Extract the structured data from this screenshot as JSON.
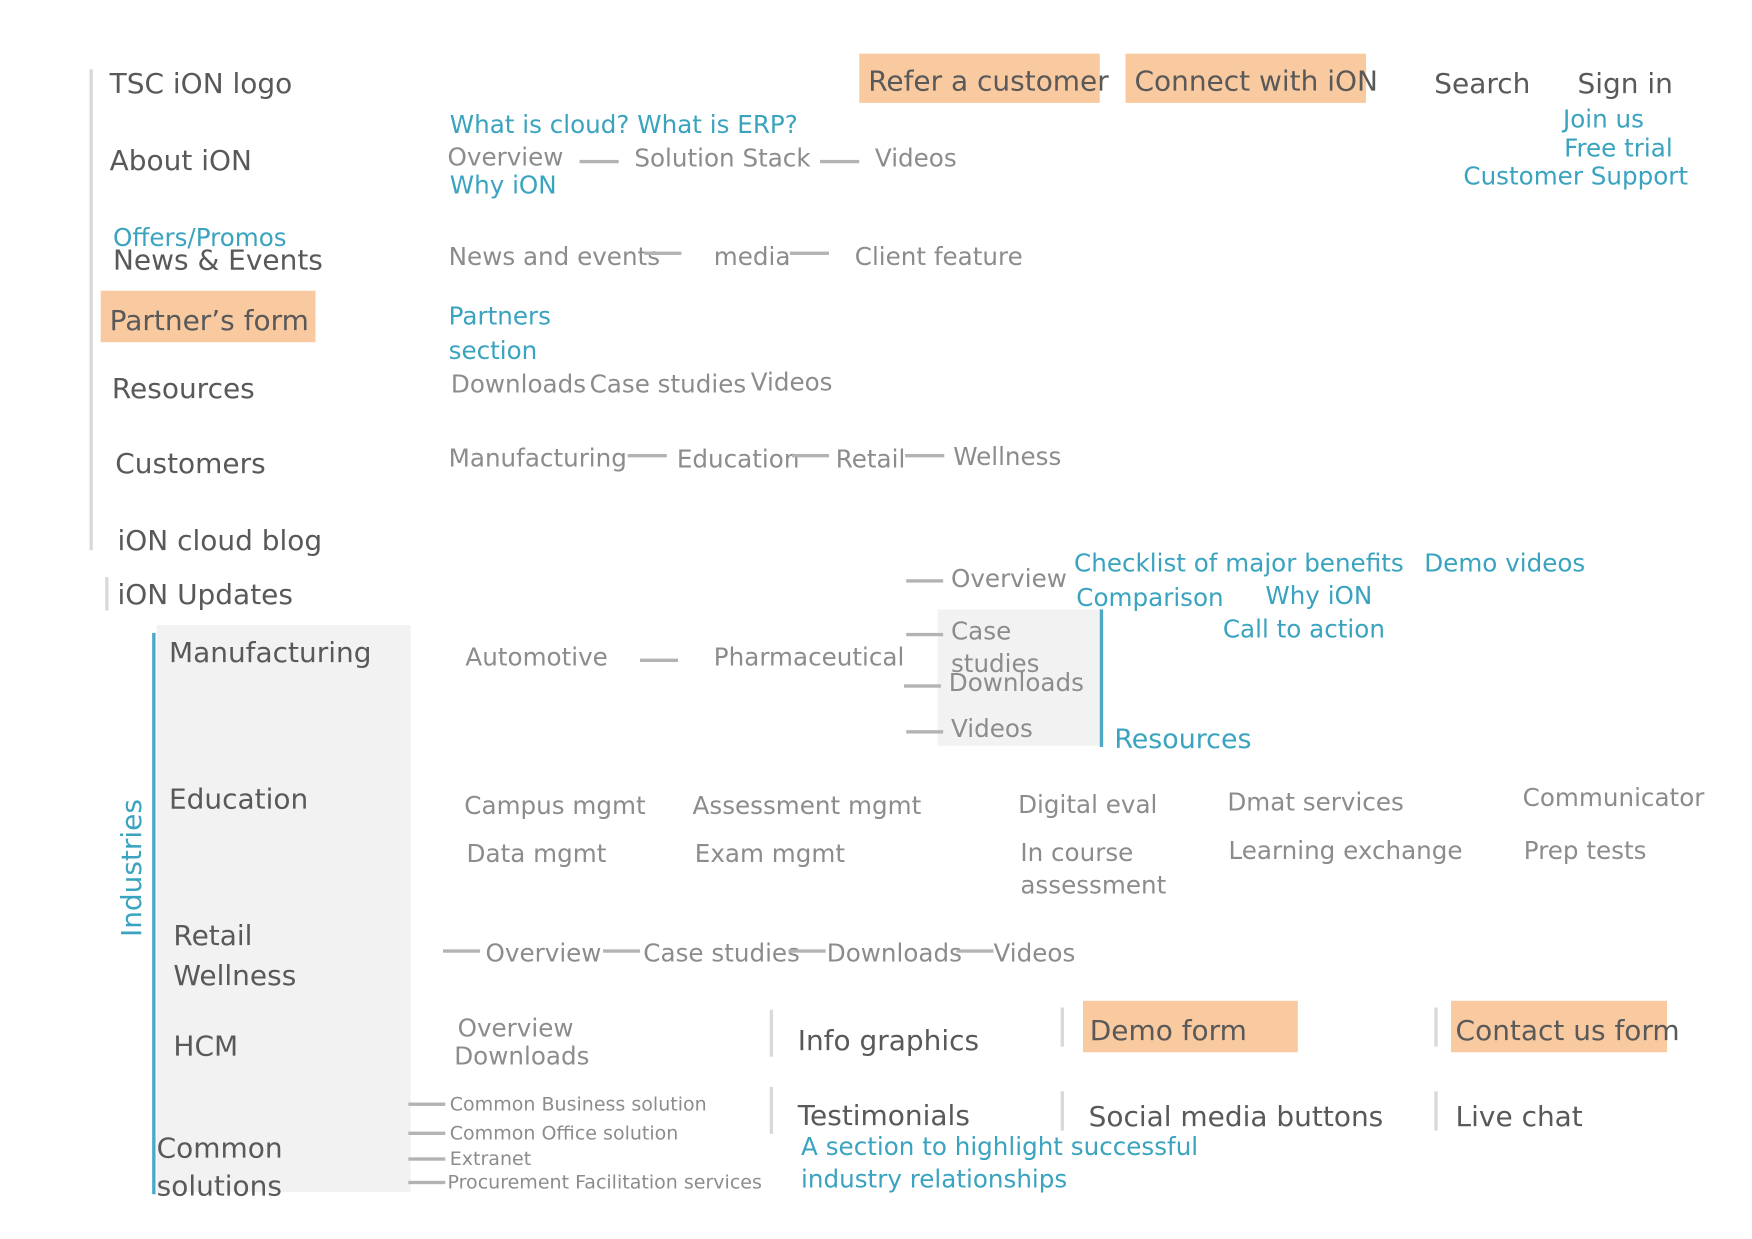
{
  "colors": {
    "accent": "#3aa3bf",
    "highlight": "#f9c99f",
    "main_text": "#595959",
    "sub_text": "#8c8c8c"
  },
  "top": {
    "logo": "TSC iON logo",
    "refer": "Refer a customer",
    "connect": "Connect with iON",
    "search": "Search",
    "signin": "Sign in",
    "join": "Join us",
    "trial": "Free trial",
    "support": "Customer Support"
  },
  "about": {
    "label": "About iON",
    "cloud_erp": "What is cloud? What is ERP?",
    "overview": "Overview",
    "solution_stack": "Solution Stack",
    "videos": "Videos",
    "why": "Why iON"
  },
  "news": {
    "offers": "Offers/Promos",
    "label": "News & Events",
    "news_events": "News and events",
    "media": "media",
    "client": "Client feature"
  },
  "partner": {
    "label": "Partner’s form",
    "section_line1": "Partners",
    "section_line2": "section"
  },
  "resources": {
    "label": "Resources",
    "downloads": "Downloads",
    "case_studies": "Case studies",
    "videos": "Videos"
  },
  "customers": {
    "label": "Customers",
    "manufacturing": "Manufacturing",
    "education": "Education",
    "retail": "Retail",
    "wellness": "Wellness"
  },
  "blog": "iON cloud blog",
  "updates": "iON Updates",
  "industries": {
    "label": "Industries",
    "manufacturing": {
      "label": "Manufacturing",
      "automotive": "Automotive",
      "pharmaceutical": "Pharmaceutical",
      "overview": "Overview",
      "case_line1": "Case",
      "case_line2": "studies",
      "downloads": "Downloads",
      "videos": "Videos",
      "resources": "Resources",
      "checklist": "Checklist of major benefits",
      "demo_videos": "Demo videos",
      "comparison": "Comparison",
      "why": "Why iON",
      "cta": "Call to action"
    },
    "education": {
      "label": "Education",
      "campus": "Campus mgmt",
      "assessment": "Assessment mgmt",
      "digital": "Digital eval",
      "dmat": "Dmat services",
      "communicator": "Communicator",
      "data": "Data mgmt",
      "exam": "Exam mgmt",
      "incourse_line1": "In course",
      "incourse_line2": "assessment",
      "learning": "Learning exchange",
      "prep": "Prep tests"
    },
    "retail": "Retail",
    "wellness": "Wellness",
    "rw": {
      "overview": "Overview",
      "case": "Case studies",
      "downloads": "Downloads",
      "videos": "Videos"
    },
    "hcm": {
      "label": "HCM",
      "overview": "Overview",
      "downloads": "Downloads"
    },
    "common": {
      "line1": "Common",
      "line2": "solutions",
      "business": "Common Business solution",
      "office": "Common Office solution",
      "extranet": "Extranet",
      "procurement": "Procurement Facilitation services"
    }
  },
  "bottom": {
    "info": "Info graphics",
    "demo_form": "Demo form",
    "contact_form": "Contact us form",
    "testimonials": "Testimonials",
    "social": "Social media buttons",
    "live": "Live chat",
    "highlight_line1": "A section to highlight successful",
    "highlight_line2": "industry relationships"
  }
}
